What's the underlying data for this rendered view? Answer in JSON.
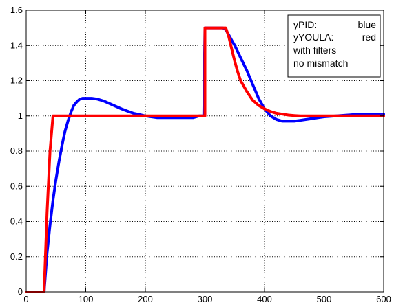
{
  "chart_data": {
    "type": "line",
    "title": "",
    "xlabel": "",
    "ylabel": "",
    "xlim": [
      0,
      600
    ],
    "ylim": [
      0,
      1.6
    ],
    "grid": true,
    "x_ticks": [
      0,
      100,
      200,
      300,
      400,
      500,
      600
    ],
    "x_tick_labels": [
      "0",
      "100",
      "200",
      "300",
      "400",
      "500",
      "600"
    ],
    "y_ticks": [
      0,
      0.2,
      0.4,
      0.6,
      0.8,
      1.0,
      1.2,
      1.4,
      1.6
    ],
    "y_tick_labels": [
      "0",
      "0.2",
      "0.4",
      "0.6",
      "0.8",
      "1",
      "1.2",
      "1.4",
      "1.6"
    ],
    "legend": {
      "placement": "top-right",
      "lines": [
        {
          "label": "yPID:",
          "value": "blue"
        },
        {
          "label": "yYOULA:",
          "value": "red"
        },
        {
          "label": "with filters",
          "value": ""
        },
        {
          "label": "no mismatch",
          "value": ""
        }
      ]
    },
    "series": [
      {
        "color": "#0000ff",
        "x": [
          0,
          30,
          35,
          40,
          45,
          50,
          55,
          60,
          65,
          70,
          75,
          80,
          85,
          90,
          95,
          100,
          110,
          120,
          130,
          140,
          150,
          160,
          170,
          180,
          190,
          200,
          210,
          220,
          230,
          240,
          250,
          260,
          270,
          280,
          290,
          298,
          300,
          310,
          320,
          330,
          335,
          340,
          345,
          350,
          360,
          370,
          380,
          390,
          400,
          410,
          420,
          430,
          440,
          450,
          460,
          470,
          480,
          490,
          500,
          520,
          540,
          560,
          580,
          600
        ],
        "y": [
          0,
          0,
          0.22,
          0.38,
          0.52,
          0.64,
          0.74,
          0.83,
          0.91,
          0.97,
          1.02,
          1.06,
          1.08,
          1.095,
          1.1,
          1.1,
          1.1,
          1.095,
          1.085,
          1.07,
          1.055,
          1.04,
          1.027,
          1.015,
          1.008,
          1.0,
          0.995,
          0.99,
          0.99,
          0.99,
          0.99,
          0.99,
          0.99,
          0.99,
          1.0,
          1.0,
          1.5,
          1.5,
          1.5,
          1.5,
          1.49,
          1.46,
          1.43,
          1.4,
          1.33,
          1.26,
          1.18,
          1.1,
          1.04,
          1.0,
          0.98,
          0.97,
          0.97,
          0.97,
          0.975,
          0.98,
          0.985,
          0.99,
          0.995,
          1.0,
          1.005,
          1.01,
          1.01,
          1.01
        ]
      },
      {
        "color": "#ff0000",
        "x": [
          0,
          30,
          35,
          40,
          45,
          300,
          300,
          335,
          340,
          345,
          350,
          355,
          360,
          370,
          380,
          390,
          400,
          410,
          420,
          430,
          440,
          450,
          460,
          470,
          480,
          500,
          520,
          540,
          560,
          580,
          600
        ],
        "y": [
          0,
          0,
          0.45,
          0.8,
          1.0,
          1.0,
          1.5,
          1.5,
          1.45,
          1.38,
          1.31,
          1.25,
          1.2,
          1.14,
          1.09,
          1.06,
          1.04,
          1.025,
          1.015,
          1.01,
          1.005,
          1.002,
          1.0,
          1.0,
          1.0,
          1.0,
          1.0,
          1.0,
          1.0,
          1.0,
          1.0
        ]
      }
    ]
  }
}
